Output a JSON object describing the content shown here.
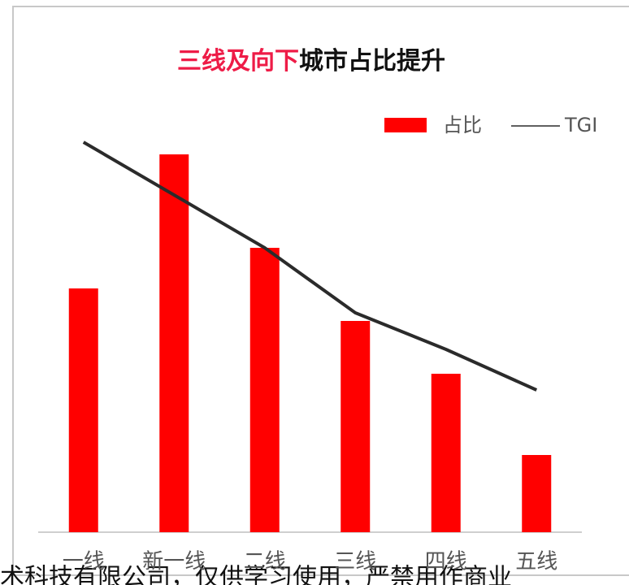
{
  "chart_data": {
    "type": "bar_line",
    "title_parts": [
      {
        "text": "三线及向下",
        "color": "#ee1c47"
      },
      {
        "text": "城市占比提升",
        "color": "#111111"
      }
    ],
    "categories": [
      "一线",
      "新一线",
      "二线",
      "三线",
      "四线",
      "五线"
    ],
    "series": [
      {
        "name": "占比",
        "type": "bar",
        "color": "#ff0000",
        "values": [
          60,
          93,
          70,
          52,
          39,
          19
        ]
      },
      {
        "name": "TGI",
        "type": "line",
        "color": "#2b2b2b",
        "values": [
          96,
          83,
          70,
          54,
          45,
          35
        ]
      }
    ],
    "ylim": [
      0,
      100
    ],
    "legend": "top-right",
    "footer": "术科技有限公司，仅供学习使用，严禁用作商业"
  }
}
